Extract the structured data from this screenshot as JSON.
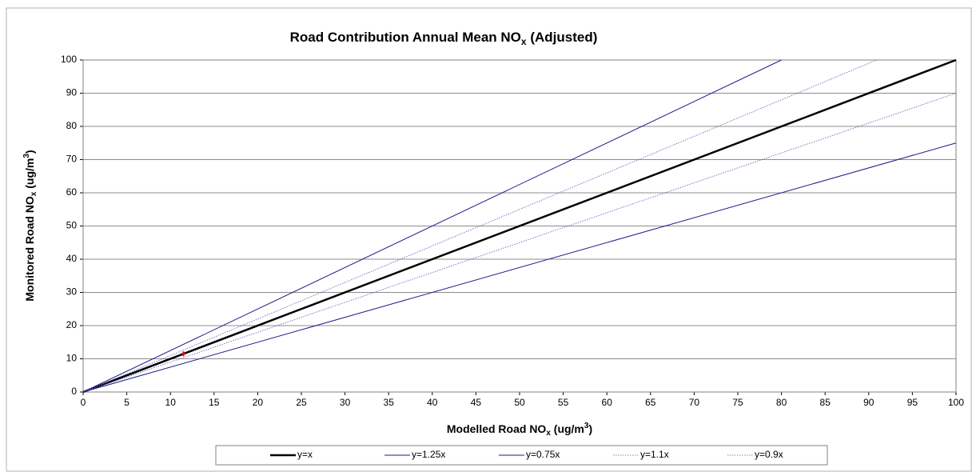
{
  "chart_data": {
    "type": "line",
    "title": [
      "Road Contribution Annual Mean NO",
      "x",
      " (Adjusted)"
    ],
    "x_label": [
      "Modelled Road NO",
      "x",
      " (ug/m",
      "3",
      ")"
    ],
    "y_label": [
      "Monitored Road NO",
      "x",
      " (ug/m",
      "3",
      ")"
    ],
    "xlim": [
      0,
      100
    ],
    "ylim": [
      0,
      100
    ],
    "xticks": [
      0,
      5,
      10,
      15,
      20,
      25,
      30,
      35,
      40,
      45,
      50,
      55,
      60,
      65,
      70,
      75,
      80,
      85,
      90,
      95,
      100
    ],
    "yticks": [
      0,
      10,
      20,
      30,
      40,
      50,
      60,
      70,
      80,
      90,
      100
    ],
    "grid": true,
    "legend": "bottom",
    "series": [
      {
        "name": "y=x",
        "color": "#000000",
        "width": 2.5,
        "dash": "solid",
        "x": [
          0,
          100
        ],
        "values": [
          0,
          100
        ]
      },
      {
        "name": "y=1.25x",
        "color": "#1f1a8a",
        "width": 1,
        "dash": "solid",
        "x": [
          0,
          80
        ],
        "values": [
          0,
          100
        ]
      },
      {
        "name": "y=0.75x",
        "color": "#1f1a8a",
        "width": 1,
        "dash": "solid",
        "x": [
          0,
          100
        ],
        "values": [
          0,
          75
        ]
      },
      {
        "name": "y=1.1x",
        "color": "#5a58b8",
        "width": 0.8,
        "dash": "dotted",
        "x": [
          0,
          90.9
        ],
        "values": [
          0,
          100
        ]
      },
      {
        "name": "y=0.9x",
        "color": "#5a58b8",
        "width": 0.8,
        "dash": "dotted",
        "x": [
          0,
          100
        ],
        "values": [
          0,
          90
        ]
      }
    ],
    "points": {
      "color": "#e00000",
      "x": [
        11.5
      ],
      "values": [
        11.5
      ]
    }
  }
}
